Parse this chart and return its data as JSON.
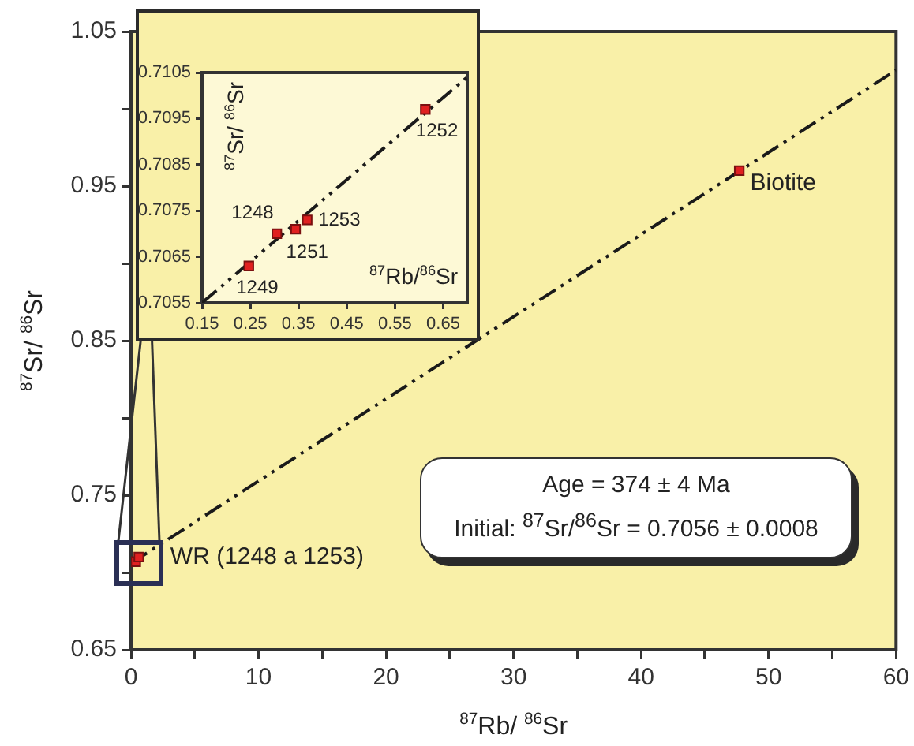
{
  "chart_data": [
    {
      "type": "scatter",
      "xlabel": "$^{87}$Rb/ $^{86}$Sr",
      "ylabel": "$^{87}$Sr/ $^{86}$Sr",
      "xlim": [
        0,
        60
      ],
      "ylim": [
        0.65,
        1.05
      ],
      "xticks": [
        0,
        {
          "value": 5,
          "label": null
        },
        10,
        {
          "value": 15,
          "label": null
        },
        20,
        {
          "value": 25,
          "label": null
        },
        30,
        {
          "value": 35,
          "label": null
        },
        40,
        {
          "value": 45,
          "label": null
        },
        50,
        {
          "value": 55,
          "label": null
        },
        60
      ],
      "yticks": [
        0.65,
        {
          "value": 0.7,
          "label": null
        },
        0.75,
        {
          "value": 0.8,
          "label": null
        },
        0.85,
        {
          "value": 0.9,
          "label": null
        },
        0.95,
        {
          "value": 1.0,
          "label": null
        },
        1.05
      ],
      "grid": false,
      "legend": false,
      "marker": "square",
      "series": [
        {
          "type": "line",
          "color": "#1a1a1a",
          "line_style": "dashed",
          "marker": "none",
          "x": [
            0,
            60
          ],
          "values": [
            0.706,
            1.025
          ]
        },
        {
          "type": "scatter",
          "color": "#e02020",
          "x": [
            0.37,
            0.61,
            47.7
          ],
          "values": [
            0.707,
            0.71,
            0.96
          ]
        }
      ],
      "annotations": [
        {
          "text": "Biotite",
          "x": 47.7,
          "y": 0.96
        },
        {
          "text": "WR (1248 a 1253)",
          "x": 0.61,
          "y": 0.71
        },
        "Age = 374 ± 4 Ma",
        "Initial: $^{87}$Sr/$^{86}$Sr = 0.7056 ± 0.0008"
      ]
    },
    {
      "type": "scatter",
      "xlabel": "$^{87}$Rb/$^{86}$Sr",
      "ylabel": "$^{87}$Sr/ $^{86}$Sr",
      "xlim": [
        0.15,
        0.7
      ],
      "ylim": [
        0.7055,
        0.7105
      ],
      "xticks": [
        0.15,
        0.25,
        0.35,
        0.45,
        0.55,
        0.65
      ],
      "yticks": [
        0.7055,
        0.7065,
        0.7075,
        0.7085,
        0.7095,
        0.7105
      ],
      "grid": false,
      "legend": false,
      "marker": "square",
      "series": [
        {
          "type": "line",
          "color": "#1a1a1a",
          "line_style": "dashed",
          "marker": "none",
          "x": [
            0.15,
            0.7
          ],
          "values": [
            0.7055,
            0.7104
          ]
        },
        {
          "type": "scatter",
          "color": "#e02020",
          "x": [
            0.247,
            0.305,
            0.344,
            0.368,
            0.613
          ],
          "values": [
            0.7063,
            0.707,
            0.7071,
            0.7073,
            0.7097
          ]
        }
      ],
      "annotations": [
        {
          "text": "1249",
          "x": 0.247,
          "y": 0.7063
        },
        {
          "text": "1248",
          "x": 0.305,
          "y": 0.707
        },
        {
          "text": "1251",
          "x": 0.344,
          "y": 0.7071
        },
        {
          "text": "1253",
          "x": 0.368,
          "y": 0.7073
        },
        {
          "text": "1252",
          "x": 0.613,
          "y": 0.7097
        }
      ]
    }
  ]
}
